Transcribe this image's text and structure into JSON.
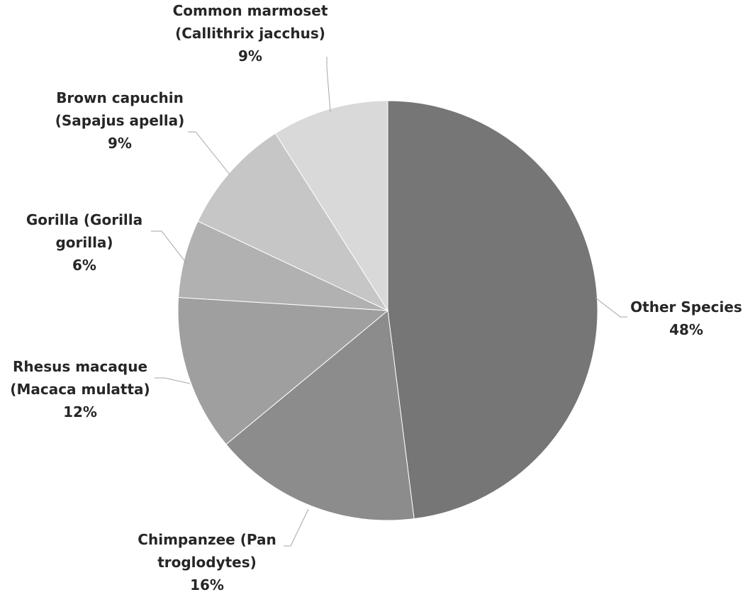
{
  "chart_data": {
    "type": "pie",
    "title": "",
    "slices": [
      {
        "label_lines": [
          "Other Species"
        ],
        "percent_label": "48%",
        "value": 48,
        "color": "#767676"
      },
      {
        "label_lines": [
          "Chimpanzee (Pan",
          "troglodytes)"
        ],
        "percent_label": "16%",
        "value": 16,
        "color": "#8c8c8c"
      },
      {
        "label_lines": [
          "Rhesus macaque",
          "(Macaca  mulatta)"
        ],
        "percent_label": "12%",
        "value": 12,
        "color": "#9f9f9f"
      },
      {
        "label_lines": [
          "Gorilla  (Gorilla",
          "gorilla)"
        ],
        "percent_label": "6%",
        "value": 6,
        "color": "#b1b1b1"
      },
      {
        "label_lines": [
          "Brown capuchin",
          "(Sapajus  apella)"
        ],
        "percent_label": "9%",
        "value": 9,
        "color": "#c6c6c6"
      },
      {
        "label_lines": [
          "Common marmoset",
          "(Callithrix  jacchus)"
        ],
        "percent_label": "9%",
        "value": 9,
        "color": "#d9d9d9"
      }
    ],
    "legend": "none",
    "start_angle": "12 o'clock",
    "direction": "clockwise"
  }
}
